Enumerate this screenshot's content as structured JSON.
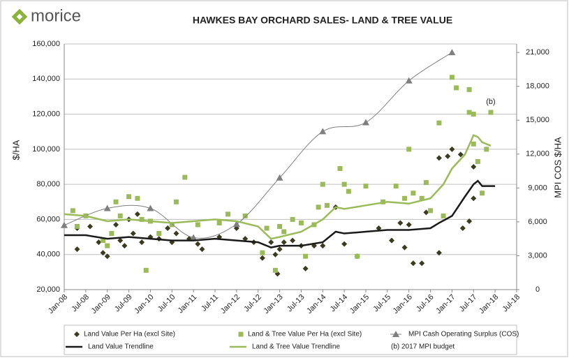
{
  "logo": "morice",
  "chart_data": {
    "type": "scatter",
    "title": "HAWKES BAY ORCHARD SALES- LAND & TREE VALUE",
    "ylabel": "$/HA",
    "y2label": "MPI  COS $/HA",
    "annotation": "(b)",
    "note": "(b) 2017 MPI  budget",
    "xlim": [
      2008,
      2018.5
    ],
    "xticks": [
      {
        "value": 2008,
        "label": "Jan-08"
      },
      {
        "value": 2008.5,
        "label": "Jul-08"
      },
      {
        "value": 2009,
        "label": "Jan-09"
      },
      {
        "value": 2009.5,
        "label": "Jul-09"
      },
      {
        "value": 2010,
        "label": "Jan-10"
      },
      {
        "value": 2010.5,
        "label": "Jul-10"
      },
      {
        "value": 2011,
        "label": "Jan-11"
      },
      {
        "value": 2011.5,
        "label": "Jul-11"
      },
      {
        "value": 2012,
        "label": "Jan-12"
      },
      {
        "value": 2012.5,
        "label": "Jul-12"
      },
      {
        "value": 2013,
        "label": "Jan-13"
      },
      {
        "value": 2013.5,
        "label": "Jul-13"
      },
      {
        "value": 2014,
        "label": "Jan-14"
      },
      {
        "value": 2014.5,
        "label": "Jul-14"
      },
      {
        "value": 2015,
        "label": "Jan-15"
      },
      {
        "value": 2015.5,
        "label": "Jul-15"
      },
      {
        "value": 2016,
        "label": "Jan-16"
      },
      {
        "value": 2016.5,
        "label": "Jul-16"
      },
      {
        "value": 2017,
        "label": "Jan-17"
      },
      {
        "value": 2017.5,
        "label": "Jul-17"
      },
      {
        "value": 2018,
        "label": "Jan-18"
      },
      {
        "value": 2018.5,
        "label": "Jul-18"
      }
    ],
    "ylim": [
      20000,
      160000
    ],
    "yticks": [
      {
        "value": 20000,
        "label": "20,000"
      },
      {
        "value": 40000,
        "label": "40,000"
      },
      {
        "value": 60000,
        "label": "60,000"
      },
      {
        "value": 80000,
        "label": "80,000"
      },
      {
        "value": 100000,
        "label": "100,000"
      },
      {
        "value": 120000,
        "label": "120,000"
      },
      {
        "value": 140000,
        "label": "140,000"
      },
      {
        "value": 160000,
        "label": "160,000"
      }
    ],
    "y2lim": [
      0,
      21750
    ],
    "y2ticks": [
      0,
      {
        "value": 3000,
        "label": "3,000"
      },
      {
        "value": 6000,
        "label": "6,000"
      },
      {
        "value": 9000,
        "label": "9,000"
      },
      {
        "value": 12000,
        "label": "12,000"
      },
      {
        "value": 15000,
        "label": "15,000"
      },
      {
        "value": 18000,
        "label": "18,000"
      },
      {
        "value": 21000,
        "label": "21,000"
      }
    ],
    "grid": true,
    "series": [
      {
        "name": "Land Value Per Ha (excl Site)",
        "type": "scatter",
        "marker": "diamond",
        "color": "#3b3b1f",
        "x": [
          2008.3,
          2008.3,
          2008.6,
          2008.8,
          2008.9,
          2009.0,
          2009.2,
          2009.3,
          2009.4,
          2009.5,
          2009.6,
          2009.7,
          2009.8,
          2010.0,
          2010.2,
          2010.4,
          2010.5,
          2010.6,
          2010.9,
          2011.1,
          2011.2,
          2011.6,
          2012.0,
          2012.2,
          2012.4,
          2012.6,
          2012.8,
          2012.9,
          2012.95,
          2013.0,
          2013.1,
          2013.3,
          2013.5,
          2013.6,
          2013.8,
          2014.0,
          2014.3,
          2014.5,
          2014.8,
          2015.3,
          2015.6,
          2015.8,
          2015.9,
          2016.0,
          2016.1,
          2016.3,
          2016.4,
          2016.7,
          2016.7,
          2016.9,
          2017.0,
          2017.2,
          2017.25,
          2017.4,
          2017.5,
          2017.5
        ],
        "values": [
          43000,
          55000,
          56000,
          47000,
          41000,
          39000,
          57000,
          48000,
          45000,
          60000,
          52000,
          63000,
          47000,
          50000,
          49000,
          55000,
          47000,
          52000,
          49000,
          46000,
          43000,
          50000,
          55000,
          49000,
          47000,
          38000,
          47000,
          40000,
          29000,
          43000,
          47000,
          48000,
          45000,
          32000,
          45000,
          45000,
          67000,
          46000,
          39000,
          55000,
          48000,
          58000,
          44000,
          57000,
          35000,
          35000,
          64000,
          41000,
          95000,
          96000,
          100000,
          97000,
          55000,
          59000,
          72000,
          90000
        ]
      },
      {
        "name": "Land & Tree Value Per Ha (excl Site)",
        "type": "scatter",
        "marker": "square",
        "color": "#9bbb59",
        "x": [
          2008.2,
          2008.3,
          2008.5,
          2008.9,
          2009.0,
          2009.1,
          2009.2,
          2009.3,
          2009.5,
          2009.7,
          2009.8,
          2009.9,
          2010.0,
          2010.2,
          2010.5,
          2010.6,
          2010.8,
          2011.1,
          2011.6,
          2011.8,
          2012.2,
          2012.6,
          2012.7,
          2012.9,
          2013.0,
          2013.1,
          2013.3,
          2013.5,
          2013.6,
          2013.8,
          2013.9,
          2014.0,
          2014.1,
          2014.4,
          2014.5,
          2014.6,
          2014.8,
          2015.0,
          2015.4,
          2015.7,
          2015.9,
          2016.0,
          2016.1,
          2016.3,
          2016.4,
          2016.5,
          2016.7,
          2016.8,
          2017.0,
          2017.1,
          2017.4,
          2017.4,
          2017.5,
          2017.5,
          2017.6,
          2017.7,
          2017.8,
          2017.9
        ],
        "values": [
          65000,
          56000,
          62000,
          48000,
          45000,
          52000,
          70000,
          62000,
          73000,
          72000,
          60000,
          31000,
          59000,
          52000,
          57000,
          70000,
          84000,
          57000,
          58000,
          63000,
          62000,
          41000,
          55000,
          31000,
          56000,
          53000,
          60000,
          58000,
          39000,
          57000,
          67000,
          80000,
          68000,
          89000,
          80000,
          76000,
          39000,
          79000,
          70000,
          79000,
          72000,
          100000,
          75000,
          72000,
          81000,
          65000,
          115000,
          62000,
          141000,
          135000,
          121000,
          134000,
          120000,
          103000,
          93000,
          75000,
          100000,
          121000
        ]
      },
      {
        "name": "MPI Cash Operating Surplus (COS)",
        "type": "line",
        "marker": "triangle",
        "axis": "y2",
        "color": "#7f7f7f",
        "x": [
          2008.0,
          2009.0,
          2010.0,
          2011.0,
          2012.0,
          2013.0,
          2014.0,
          2015.0,
          2016.0,
          2017.0
        ],
        "values": [
          5700,
          7200,
          7200,
          4600,
          5800,
          9900,
          14000,
          14800,
          18500,
          21000
        ]
      },
      {
        "name": "Land Value Trendline",
        "type": "line",
        "color": "#1a1a1a",
        "x": [
          2008.0,
          2008.5,
          2009.0,
          2009.5,
          2010.0,
          2010.5,
          2011.0,
          2011.5,
          2012.0,
          2012.5,
          2012.8,
          2013.0,
          2013.5,
          2014.0,
          2014.3,
          2014.5,
          2015.0,
          2015.5,
          2016.0,
          2016.5,
          2016.7,
          2017.0,
          2017.3,
          2017.5,
          2017.6,
          2017.7,
          2018.0
        ],
        "values": [
          51000,
          51000,
          49000,
          50000,
          49000,
          48000,
          48000,
          49000,
          48000,
          47000,
          44000,
          45000,
          45000,
          47000,
          53000,
          52000,
          53000,
          54000,
          54000,
          55000,
          58000,
          62000,
          73000,
          80000,
          82000,
          79000,
          79000
        ]
      },
      {
        "name": "Land & Tree Value Trendline",
        "type": "line",
        "color": "#9bbb59",
        "x": [
          2008.0,
          2008.5,
          2009.0,
          2009.5,
          2010.0,
          2010.5,
          2011.0,
          2011.5,
          2012.0,
          2012.5,
          2012.8,
          2013.0,
          2013.5,
          2014.0,
          2014.3,
          2014.5,
          2015.0,
          2015.5,
          2016.0,
          2016.5,
          2016.8,
          2017.0,
          2017.3,
          2017.5,
          2017.6,
          2017.7,
          2017.9
        ],
        "values": [
          63000,
          62000,
          59000,
          60000,
          59000,
          58000,
          59000,
          60000,
          59000,
          56000,
          49000,
          50000,
          53000,
          60000,
          67000,
          66000,
          68000,
          70000,
          69000,
          72000,
          80000,
          89000,
          97000,
          108000,
          107000,
          104000,
          102000
        ]
      }
    ]
  }
}
